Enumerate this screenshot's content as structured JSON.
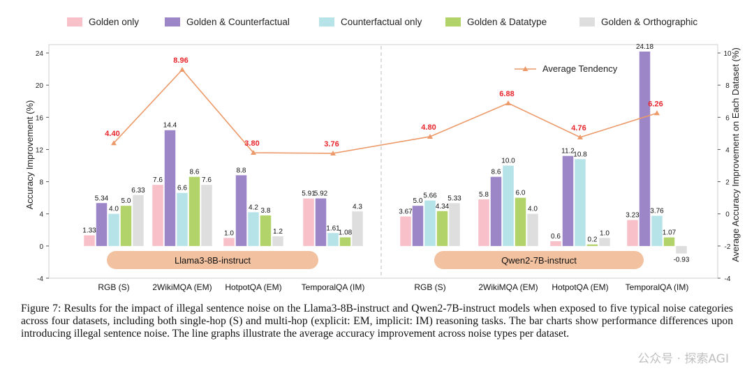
{
  "chart_data": {
    "type": "bar",
    "legend_position": "top",
    "legend": [
      "Golden only",
      "Golden & Counterfactual",
      "Counterfactual only",
      "Golden & Datatype",
      "Golden & Orthographic"
    ],
    "series_colors": [
      "#f8c0c8",
      "#9c86c8",
      "#b5e3e8",
      "#b2d36a",
      "#dedede"
    ],
    "ylabel": "Accuracy Improvement (%)",
    "ylabel_right": "Average Accuracy Improvement on Each Dataset (%)",
    "ylim": [
      -4,
      24
    ],
    "yticks": [
      "-4",
      "0",
      "4",
      "8",
      "12",
      "16",
      "20",
      "24"
    ],
    "ylim_right": [
      -4,
      10
    ],
    "yticks_right": [
      "-4",
      "-2",
      "0",
      "2",
      "4",
      "6",
      "8",
      "10"
    ],
    "line_legend": "Average Tendency",
    "line_color": "#ec9a6a",
    "line_label_color": "#e8242b",
    "model_color": "#f2c1a0",
    "groups": [
      {
        "model": "Llama3-8B-instruct",
        "categories": [
          "RGB (S)",
          "2WikiMQA (EM)",
          "HotpotQA (EM)",
          "TemporalQA (IM)"
        ],
        "series": [
          {
            "name": "Golden only",
            "values": [
              1.33,
              7.6,
              1.0,
              5.91
            ],
            "labels": [
              "1.33",
              "7.6",
              "1.0",
              "5.91"
            ]
          },
          {
            "name": "Golden & Counterfactual",
            "values": [
              5.34,
              14.4,
              8.8,
              5.92
            ],
            "labels": [
              "5.34",
              "14.4",
              "8.8",
              "5.92"
            ]
          },
          {
            "name": "Counterfactual only",
            "values": [
              4.0,
              6.6,
              4.2,
              1.61
            ],
            "labels": [
              "4.0",
              "6.6",
              "4.2",
              "1.61"
            ]
          },
          {
            "name": "Golden & Datatype",
            "values": [
              5.0,
              8.6,
              3.8,
              1.08
            ],
            "labels": [
              "5.0",
              "8.6",
              "3.8",
              "1.08"
            ]
          },
          {
            "name": "Golden & Orthographic",
            "values": [
              6.33,
              7.6,
              1.2,
              4.3
            ],
            "labels": [
              "6.33",
              "7.6",
              "1.2",
              "4.3"
            ]
          }
        ],
        "average": {
          "values": [
            4.4,
            8.96,
            3.8,
            3.76
          ],
          "labels": [
            "4.40",
            "8.96",
            "3.80",
            "3.76"
          ]
        }
      },
      {
        "model": "Qwen2-7B-instruct",
        "categories": [
          "RGB (S)",
          "2WikiMQA (EM)",
          "HotpotQA (EM)",
          "TemporalQA (IM)"
        ],
        "series": [
          {
            "name": "Golden only",
            "values": [
              3.67,
              5.8,
              0.6,
              3.23
            ],
            "labels": [
              "3.67",
              "5.8",
              "0.6",
              "3.23"
            ]
          },
          {
            "name": "Golden & Counterfactual",
            "values": [
              5.0,
              8.6,
              11.2,
              24.18
            ],
            "labels": [
              "5.0",
              "8.6",
              "11.2",
              "24.18"
            ]
          },
          {
            "name": "Counterfactual only",
            "values": [
              5.66,
              10.0,
              10.8,
              3.76
            ],
            "labels": [
              "5.66",
              "10.0",
              "10.8",
              "3.76"
            ]
          },
          {
            "name": "Golden & Datatype",
            "values": [
              4.34,
              6.0,
              0.2,
              1.07
            ],
            "labels": [
              "4.34",
              "6.0",
              "0.2",
              "1.07"
            ]
          },
          {
            "name": "Golden & Orthographic",
            "values": [
              5.33,
              4.0,
              1.0,
              -0.93
            ],
            "labels": [
              "5.33",
              "4.0",
              "1.0",
              "-0.93"
            ]
          }
        ],
        "average": {
          "values": [
            4.8,
            6.88,
            4.76,
            6.26
          ],
          "labels": [
            "4.80",
            "6.88",
            "4.76",
            "6.26"
          ]
        }
      }
    ]
  },
  "caption": "Figure 7: Results for the impact of illegal sentence noise on the Llama3-8B-instruct and Qwen2-7B-instruct models when exposed to five typical noise categories across four datasets, including both single-hop (S) and multi-hop (explicit: EM, implicit: IM) reasoning tasks. The bar charts show performance differences upon introducing illegal sentence noise. The line graphs illustrate the average accuracy improvement across noise types per dataset.",
  "watermark": "公众号 · 探索AGI"
}
